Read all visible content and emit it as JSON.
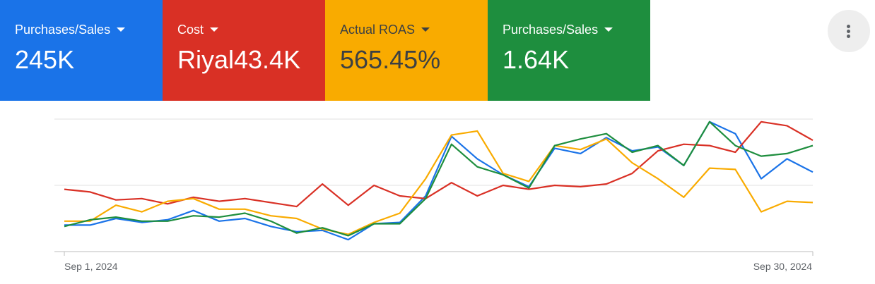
{
  "scorecards": [
    {
      "label": "Purchases/Sales",
      "value": "245K",
      "color": "#1a73e8",
      "text_color": "#ffffff"
    },
    {
      "label": "Cost",
      "value": "Riyal43.4K",
      "color": "#d93025",
      "text_color": "#ffffff"
    },
    {
      "label": "Actual ROAS",
      "value": "565.45%",
      "color": "#f9ab00",
      "text_color": "#3c4043"
    },
    {
      "label": "Purchases/Sales",
      "value": "1.64K",
      "color": "#1e8e3e",
      "text_color": "#ffffff"
    }
  ],
  "menu": {
    "icon": "more-vert-icon"
  },
  "chart_data": {
    "type": "line",
    "x_tick_labels": [
      "Sep 1, 2024",
      "Sep 30, 2024"
    ],
    "x": [
      1,
      2,
      3,
      4,
      5,
      6,
      7,
      8,
      9,
      10,
      11,
      12,
      13,
      14,
      15,
      16,
      17,
      18,
      19,
      20,
      21,
      22,
      23,
      24,
      25,
      26,
      27,
      28,
      29,
      30
    ],
    "ylim": [
      0,
      100
    ],
    "grid": true,
    "legend": "none",
    "series": [
      {
        "color": "#1a73e8",
        "values": [
          20,
          20,
          25,
          22,
          24,
          31,
          23,
          25,
          19,
          15,
          16,
          9,
          21,
          22,
          42,
          87,
          70,
          58,
          49,
          78,
          74,
          86,
          76,
          79,
          65,
          98,
          89,
          55,
          70,
          60
        ]
      },
      {
        "color": "#d93025",
        "values": [
          47,
          45,
          39,
          40,
          36,
          41,
          38,
          40,
          37,
          34,
          51,
          35,
          50,
          42,
          40,
          52,
          42,
          50,
          47,
          50,
          49,
          51,
          59,
          76,
          81,
          80,
          75,
          98,
          95,
          84
        ]
      },
      {
        "color": "#f9ab00",
        "values": [
          23,
          23,
          35,
          30,
          38,
          40,
          32,
          32,
          27,
          25,
          17,
          13,
          22,
          29,
          55,
          88,
          91,
          59,
          53,
          80,
          77,
          85,
          67,
          55,
          41,
          63,
          62,
          30,
          38,
          37
        ]
      },
      {
        "color": "#1e8e3e",
        "values": [
          19,
          24,
          26,
          23,
          23,
          27,
          26,
          29,
          23,
          14,
          18,
          12,
          21,
          21,
          40,
          81,
          64,
          58,
          48,
          80,
          85,
          89,
          75,
          80,
          65,
          98,
          80,
          72,
          74,
          80
        ]
      }
    ]
  }
}
